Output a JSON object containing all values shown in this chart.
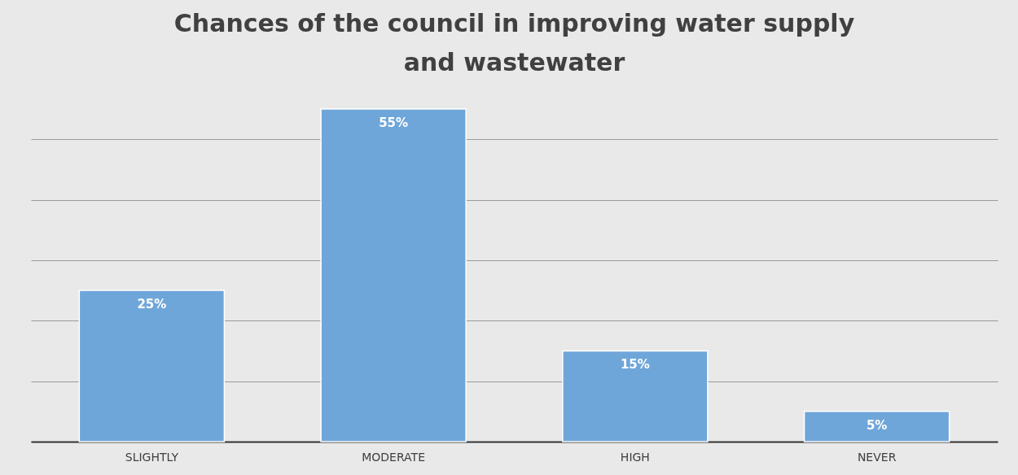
{
  "chart_data": {
    "type": "bar",
    "title": "Chances of the council in improving water supply and wastewater",
    "categories": [
      "SLIGHTLY",
      "MODERATE",
      "HIGH",
      "NEVER"
    ],
    "values": [
      25,
      55,
      15,
      5
    ],
    "color": "#6fa6d9",
    "value_labels": [
      "25%",
      "55%",
      "15%",
      "5%"
    ],
    "tick_labels": "x",
    "grid": "y"
  }
}
